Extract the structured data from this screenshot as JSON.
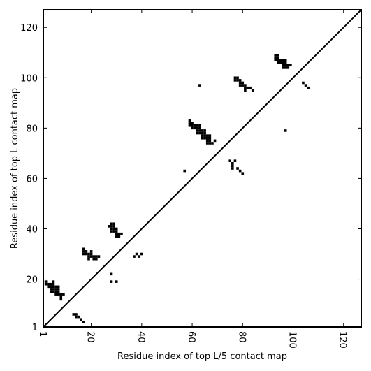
{
  "chart_data": {
    "type": "heatmap",
    "title": "",
    "xlabel": "Residue index of top L/5 contact map",
    "ylabel": "Residue index of top L contact map",
    "xlim": [
      1,
      127
    ],
    "ylim": [
      1,
      127
    ],
    "x_ticks": [
      1,
      20,
      40,
      60,
      80,
      100,
      120
    ],
    "y_ticks": [
      1,
      20,
      40,
      60,
      80,
      100,
      120
    ],
    "diagonal_line": true,
    "grid": false,
    "mark_color": "#000000",
    "cells": [
      [
        2,
        18
      ],
      [
        2,
        19
      ],
      [
        3,
        17
      ],
      [
        3,
        18
      ],
      [
        4,
        15
      ],
      [
        4,
        16
      ],
      [
        4,
        17
      ],
      [
        4,
        18
      ],
      [
        5,
        15
      ],
      [
        5,
        16
      ],
      [
        5,
        17
      ],
      [
        5,
        18
      ],
      [
        5,
        19
      ],
      [
        6,
        14
      ],
      [
        6,
        15
      ],
      [
        6,
        16
      ],
      [
        6,
        17
      ],
      [
        7,
        14
      ],
      [
        7,
        15
      ],
      [
        7,
        16
      ],
      [
        7,
        17
      ],
      [
        8,
        12
      ],
      [
        8,
        13
      ],
      [
        8,
        14
      ],
      [
        9,
        14
      ],
      [
        13,
        6
      ],
      [
        14,
        5
      ],
      [
        14,
        6
      ],
      [
        15,
        5
      ],
      [
        16,
        4
      ],
      [
        17,
        3
      ],
      [
        17,
        30
      ],
      [
        17,
        31
      ],
      [
        17,
        32
      ],
      [
        18,
        30
      ],
      [
        18,
        31
      ],
      [
        19,
        28
      ],
      [
        19,
        29
      ],
      [
        19,
        30
      ],
      [
        20,
        29
      ],
      [
        20,
        30
      ],
      [
        20,
        31
      ],
      [
        21,
        28
      ],
      [
        21,
        29
      ],
      [
        22,
        28
      ],
      [
        22,
        29
      ],
      [
        23,
        29
      ],
      [
        27,
        41
      ],
      [
        28,
        39
      ],
      [
        28,
        40
      ],
      [
        28,
        41
      ],
      [
        28,
        42
      ],
      [
        29,
        39
      ],
      [
        29,
        40
      ],
      [
        29,
        41
      ],
      [
        29,
        42
      ],
      [
        30,
        37
      ],
      [
        30,
        38
      ],
      [
        30,
        39
      ],
      [
        30,
        40
      ],
      [
        31,
        37
      ],
      [
        31,
        38
      ],
      [
        32,
        38
      ],
      [
        28,
        22
      ],
      [
        28,
        19
      ],
      [
        30,
        19
      ],
      [
        37,
        29
      ],
      [
        38,
        30
      ],
      [
        39,
        29
      ],
      [
        40,
        30
      ],
      [
        57,
        63
      ],
      [
        59,
        81
      ],
      [
        59,
        82
      ],
      [
        59,
        83
      ],
      [
        60,
        80
      ],
      [
        60,
        81
      ],
      [
        60,
        82
      ],
      [
        61,
        80
      ],
      [
        61,
        81
      ],
      [
        62,
        78
      ],
      [
        62,
        79
      ],
      [
        62,
        80
      ],
      [
        62,
        81
      ],
      [
        63,
        78
      ],
      [
        63,
        79
      ],
      [
        63,
        80
      ],
      [
        63,
        81
      ],
      [
        64,
        76
      ],
      [
        64,
        77
      ],
      [
        64,
        78
      ],
      [
        64,
        79
      ],
      [
        65,
        76
      ],
      [
        65,
        77
      ],
      [
        65,
        78
      ],
      [
        65,
        79
      ],
      [
        66,
        74
      ],
      [
        66,
        75
      ],
      [
        66,
        76
      ],
      [
        66,
        77
      ],
      [
        67,
        74
      ],
      [
        67,
        75
      ],
      [
        67,
        76
      ],
      [
        67,
        77
      ],
      [
        68,
        74
      ],
      [
        69,
        75
      ],
      [
        63,
        97
      ],
      [
        75,
        67
      ],
      [
        76,
        64
      ],
      [
        76,
        65
      ],
      [
        76,
        66
      ],
      [
        77,
        67
      ],
      [
        78,
        64
      ],
      [
        79,
        63
      ],
      [
        80,
        62
      ],
      [
        77,
        99
      ],
      [
        77,
        100
      ],
      [
        78,
        99
      ],
      [
        78,
        100
      ],
      [
        79,
        97
      ],
      [
        79,
        98
      ],
      [
        79,
        99
      ],
      [
        80,
        97
      ],
      [
        80,
        98
      ],
      [
        81,
        95
      ],
      [
        81,
        96
      ],
      [
        81,
        97
      ],
      [
        82,
        96
      ],
      [
        83,
        96
      ],
      [
        84,
        95
      ],
      [
        93,
        107
      ],
      [
        93,
        108
      ],
      [
        93,
        109
      ],
      [
        94,
        106
      ],
      [
        94,
        107
      ],
      [
        94,
        108
      ],
      [
        94,
        109
      ],
      [
        95,
        106
      ],
      [
        95,
        107
      ],
      [
        96,
        104
      ],
      [
        96,
        105
      ],
      [
        96,
        106
      ],
      [
        96,
        107
      ],
      [
        97,
        104
      ],
      [
        97,
        105
      ],
      [
        97,
        106
      ],
      [
        97,
        107
      ],
      [
        98,
        104
      ],
      [
        98,
        105
      ],
      [
        99,
        105
      ],
      [
        97,
        79
      ],
      [
        104,
        98
      ],
      [
        105,
        97
      ],
      [
        106,
        96
      ]
    ]
  }
}
